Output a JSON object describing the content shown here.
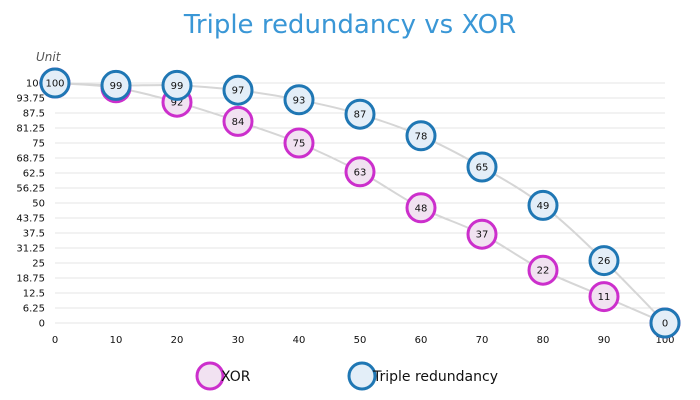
{
  "chart_data": {
    "type": "line",
    "title": "Triple redundancy vs XOR",
    "ylabel": "Unit",
    "xlabel": "",
    "x": [
      0,
      10,
      20,
      30,
      40,
      50,
      60,
      70,
      80,
      90,
      100
    ],
    "xlim": [
      0,
      100
    ],
    "ylim": [
      0,
      100
    ],
    "x_ticks": [
      "0",
      "10",
      "20",
      "30",
      "40",
      "50",
      "60",
      "70",
      "80",
      "90",
      "100"
    ],
    "y_ticks": [
      "0",
      "6.25",
      "12.5",
      "18.75",
      "25",
      "31.25",
      "37.5",
      "43.75",
      "50",
      "56.25",
      "62.5",
      "68.75",
      "75",
      "81.25",
      "87.5",
      "93.75",
      "100"
    ],
    "grid": true,
    "legend_position": "bottom",
    "series": [
      {
        "name": "Triple redundancy",
        "values": [
          100,
          99,
          99,
          97,
          93,
          87,
          78,
          65,
          49,
          26,
          0
        ],
        "labels": [
          "100",
          "99",
          "99",
          "97",
          "93",
          "87",
          "78",
          "65",
          "49",
          "26",
          "0"
        ],
        "color": "#1f77b4",
        "fill": "#e3eef8"
      },
      {
        "name": "XOR",
        "values": [
          100,
          98,
          92,
          84,
          75,
          63,
          48,
          37,
          22,
          11,
          0
        ],
        "labels": [
          "100",
          "98",
          "92",
          "84",
          "75",
          "63",
          "48",
          "37",
          "22",
          "11",
          "0"
        ],
        "color": "#cc2fcc",
        "fill": "#f1e2f1"
      }
    ]
  }
}
